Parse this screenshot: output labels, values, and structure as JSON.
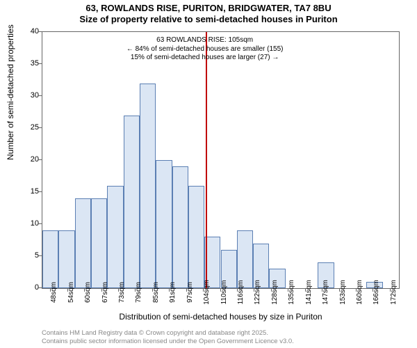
{
  "chart": {
    "type": "histogram",
    "title_main": "63, ROWLANDS RISE, PURITON, BRIDGWATER, TA7 8BU",
    "title_sub": "Size of property relative to semi-detached houses in Puriton",
    "title_fontsize": 13,
    "y_axis": {
      "label": "Number of semi-detached properties",
      "min": 0,
      "max": 40,
      "tick_step": 5,
      "label_fontsize": 12,
      "tick_fontsize": 11
    },
    "x_axis": {
      "label": "Distribution of semi-detached houses by size in Puriton",
      "tick_suffix": "sqm",
      "ticks": [
        48,
        54,
        60,
        67,
        73,
        79,
        85,
        91,
        97,
        104,
        110,
        116,
        122,
        128,
        135,
        141,
        147,
        153,
        160,
        166,
        172
      ],
      "label_fontsize": 12,
      "tick_fontsize": 10
    },
    "bars": {
      "values": [
        9,
        9,
        14,
        14,
        16,
        27,
        32,
        20,
        19,
        16,
        8,
        6,
        9,
        7,
        3,
        0,
        0,
        4,
        0,
        0,
        1,
        0
      ],
      "fill_color": "#dbe6f4",
      "border_color": "#5b7fb3"
    },
    "reference_line": {
      "position_sqm": 105,
      "color": "#c00000",
      "width": 2
    },
    "annotation": {
      "line1": "63 ROWLANDS RISE: 105sqm",
      "line2": "← 84% of semi-detached houses are smaller (155)",
      "line3": "15% of semi-detached houses are larger (27) →",
      "fontsize": 10
    },
    "background_color": "#ffffff",
    "plot_border_color": "#666666",
    "attribution": {
      "line1": "Contains HM Land Registry data © Crown copyright and database right 2025.",
      "line2": "Contains public sector information licensed under the Open Government Licence v3.0.",
      "color": "#888888",
      "fontsize": 9.5
    }
  }
}
